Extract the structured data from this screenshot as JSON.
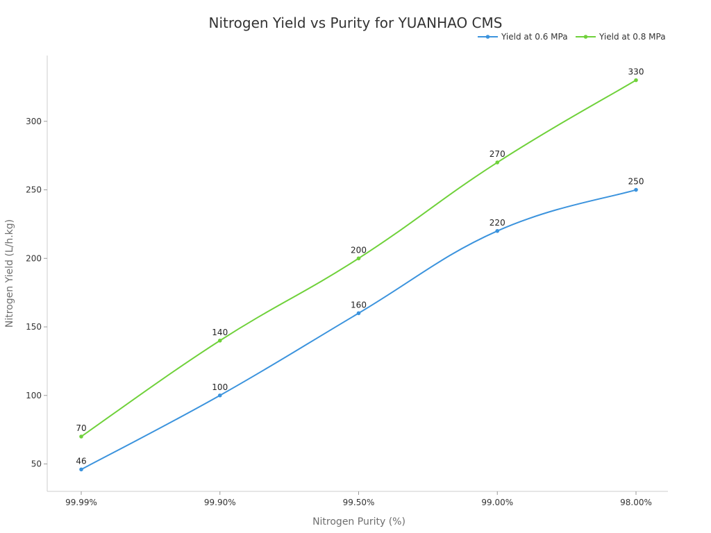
{
  "chart_data": {
    "type": "line",
    "title": "Nitrogen Yield vs Purity for YUANHAO CMS",
    "xlabel": "Nitrogen Purity (%)",
    "ylabel": "Nitrogen Yield (L/h.kg)",
    "categories": [
      "99.99%",
      "99.90%",
      "99.50%",
      "99.00%",
      "98.00%"
    ],
    "ylim": [
      30,
      348
    ],
    "yticks": [
      50,
      100,
      150,
      200,
      250,
      300
    ],
    "grid": false,
    "legend_position": "top-right",
    "series": [
      {
        "name": "Yield at 0.6 MPa",
        "color": "#3b93dd",
        "values": [
          46,
          100,
          160,
          220,
          250
        ]
      },
      {
        "name": "Yield at 0.8 MPa",
        "color": "#6fd13a",
        "values": [
          70,
          140,
          200,
          270,
          330
        ]
      }
    ]
  }
}
